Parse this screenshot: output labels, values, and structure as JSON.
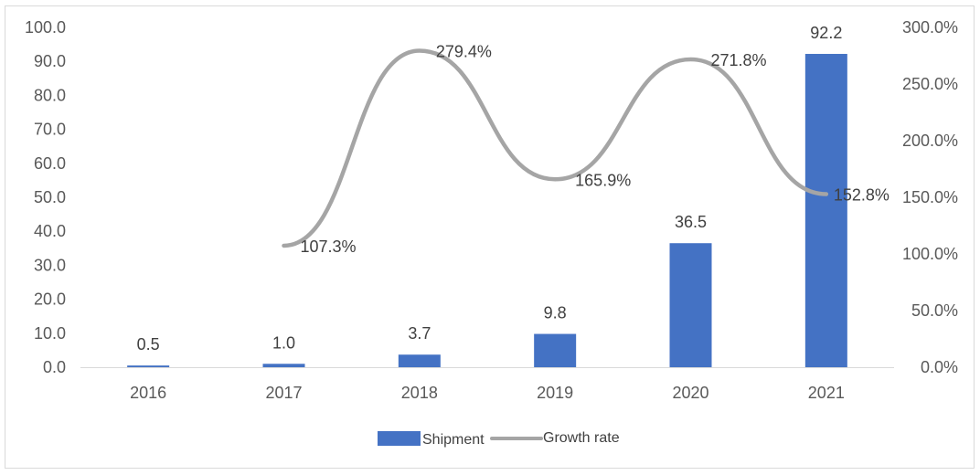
{
  "chart_data": {
    "type": "bar+line",
    "categories": [
      "2016",
      "2017",
      "2018",
      "2019",
      "2020",
      "2021"
    ],
    "series": [
      {
        "name": "Shipment",
        "type": "bar",
        "axis": "left",
        "values": [
          0.5,
          1.0,
          3.7,
          9.8,
          36.5,
          92.2
        ],
        "labels": [
          "0.5",
          "1.0",
          "3.7",
          "9.8",
          "36.5",
          "92.2"
        ],
        "color": "#4472c4"
      },
      {
        "name": "Growth rate",
        "type": "line",
        "axis": "right",
        "smooth": true,
        "values": [
          null,
          107.3,
          279.4,
          165.9,
          271.8,
          152.8
        ],
        "labels": [
          "",
          "107.3%",
          "279.4%",
          "165.9%",
          "271.8%",
          "152.8%"
        ],
        "color": "#a5a5a5"
      }
    ],
    "ylim_left": [
      0,
      100
    ],
    "yticks_left": [
      "0.0",
      "10.0",
      "20.0",
      "30.0",
      "40.0",
      "50.0",
      "60.0",
      "70.0",
      "80.0",
      "90.0",
      "100.0"
    ],
    "ylim_right": [
      0,
      300
    ],
    "yticks_right": [
      "0.0%",
      "50.0%",
      "100.0%",
      "150.0%",
      "200.0%",
      "250.0%",
      "300.0%"
    ],
    "grid": false,
    "legend_position": "bottom-center"
  }
}
